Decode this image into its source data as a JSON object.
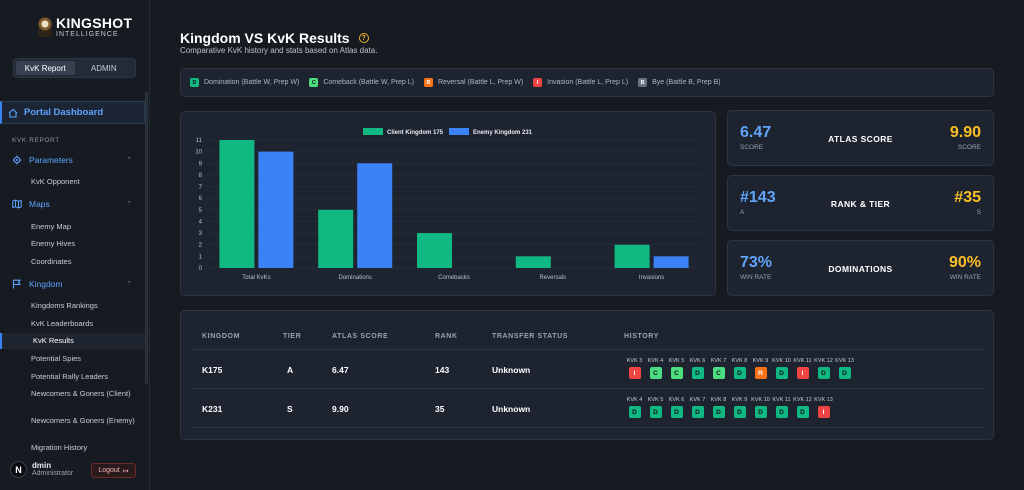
{
  "brand": {
    "title": "KINGSHOT",
    "subtitle": "INTELLIGENCE"
  },
  "mode_switch": {
    "options": [
      "KvK Report",
      "ADMIN"
    ],
    "active": "KvK Report"
  },
  "sidebar": {
    "portal": "Portal Dashboard",
    "section": "KVK REPORT",
    "groups": [
      {
        "label": "Parameters",
        "icon": "gear-icon",
        "items": [
          "KvK Opponent"
        ]
      },
      {
        "label": "Maps",
        "icon": "map-icon",
        "items": [
          "Enemy Map",
          "Enemy Hives",
          "Coordinates"
        ]
      },
      {
        "label": "Kingdom",
        "icon": "flag-icon",
        "items": [
          "Kingdoms Rankings",
          "KvK Leaderboards",
          "KvK Results",
          "Potential Spies",
          "Potential Rally Leaders",
          "Newcomers & Goners (Client)",
          "Newcomers & Goners (Enemy)",
          "Migration History"
        ]
      }
    ],
    "active_item": "KvK Results"
  },
  "user": {
    "initial": "N",
    "name": "dmin",
    "role": "Administrator",
    "logout": "Logout"
  },
  "page": {
    "title": "Kingdom VS KvK Results",
    "help": "?",
    "subtitle": "Comparative KvK history and stats based on Atlas data."
  },
  "legend": [
    {
      "code": "D",
      "label": "Domination (Battle W, Prep W)"
    },
    {
      "code": "C",
      "label": "Comeback (Battle W, Prep L)"
    },
    {
      "code": "R",
      "label": "Reversal (Battle L, Prep W)"
    },
    {
      "code": "I",
      "label": "Invasion (Battle L, Prep L)"
    },
    {
      "code": "B",
      "label": "Bye (Battle B, Prep B)"
    }
  ],
  "chart_data": {
    "type": "bar",
    "categories": [
      "Total KvKs",
      "Dominations",
      "Comebacks",
      "Reversals",
      "Invasions"
    ],
    "series": [
      {
        "name": "Client Kingdom 175",
        "color": "#10b981",
        "values": [
          11,
          5,
          3,
          1,
          2
        ]
      },
      {
        "name": "Enemy Kingdom 231",
        "color": "#3b82f6",
        "values": [
          10,
          9,
          0,
          0,
          1
        ]
      }
    ],
    "ylim": [
      0,
      11
    ],
    "yticks": [
      0,
      1,
      2,
      3,
      4,
      5,
      6,
      7,
      8,
      9,
      10,
      11
    ],
    "legend_position": "top-center",
    "grid": true
  },
  "stats": [
    {
      "left": "6.47",
      "left_sub": "SCORE",
      "label": "ATLAS SCORE",
      "right": "9.90",
      "right_sub": "SCORE"
    },
    {
      "left": "#143",
      "left_sub": "A",
      "label": "RANK & TIER",
      "right": "#35",
      "right_sub": "S"
    },
    {
      "left": "73%",
      "left_sub": "WIN RATE",
      "label": "DOMINATIONS",
      "right": "90%",
      "right_sub": "WIN RATE"
    }
  ],
  "table": {
    "headers": [
      "KINGDOM",
      "TIER",
      "ATLAS SCORE",
      "RANK",
      "TRANSFER STATUS",
      "HISTORY"
    ],
    "rows": [
      {
        "kingdom": "K175",
        "tier": "A",
        "score": "6.47",
        "rank": "143",
        "transfer": "Unknown",
        "history": [
          {
            "kvk": "KVK 3",
            "r": "I"
          },
          {
            "kvk": "KVK 4",
            "r": "C"
          },
          {
            "kvk": "KVK 5",
            "r": "C"
          },
          {
            "kvk": "KVK 6",
            "r": "D"
          },
          {
            "kvk": "KVK 7",
            "r": "C"
          },
          {
            "kvk": "KVK 8",
            "r": "D"
          },
          {
            "kvk": "KVK 9",
            "r": "R"
          },
          {
            "kvk": "KVK 10",
            "r": "D"
          },
          {
            "kvk": "KVK 11",
            "r": "I"
          },
          {
            "kvk": "KVK 12",
            "r": "D"
          },
          {
            "kvk": "KVK 13",
            "r": "D"
          }
        ]
      },
      {
        "kingdom": "K231",
        "tier": "S",
        "score": "9.90",
        "rank": "35",
        "transfer": "Unknown",
        "history": [
          {
            "kvk": "KVK 4",
            "r": "D"
          },
          {
            "kvk": "KVK 5",
            "r": "D"
          },
          {
            "kvk": "KVK 6",
            "r": "D"
          },
          {
            "kvk": "KVK 7",
            "r": "D"
          },
          {
            "kvk": "KVK 8",
            "r": "D"
          },
          {
            "kvk": "KVK 9",
            "r": "D"
          },
          {
            "kvk": "KVK 10",
            "r": "D"
          },
          {
            "kvk": "KVK 11",
            "r": "D"
          },
          {
            "kvk": "KVK 12",
            "r": "D"
          },
          {
            "kvk": "KVK 13",
            "r": "I"
          }
        ]
      }
    ]
  }
}
